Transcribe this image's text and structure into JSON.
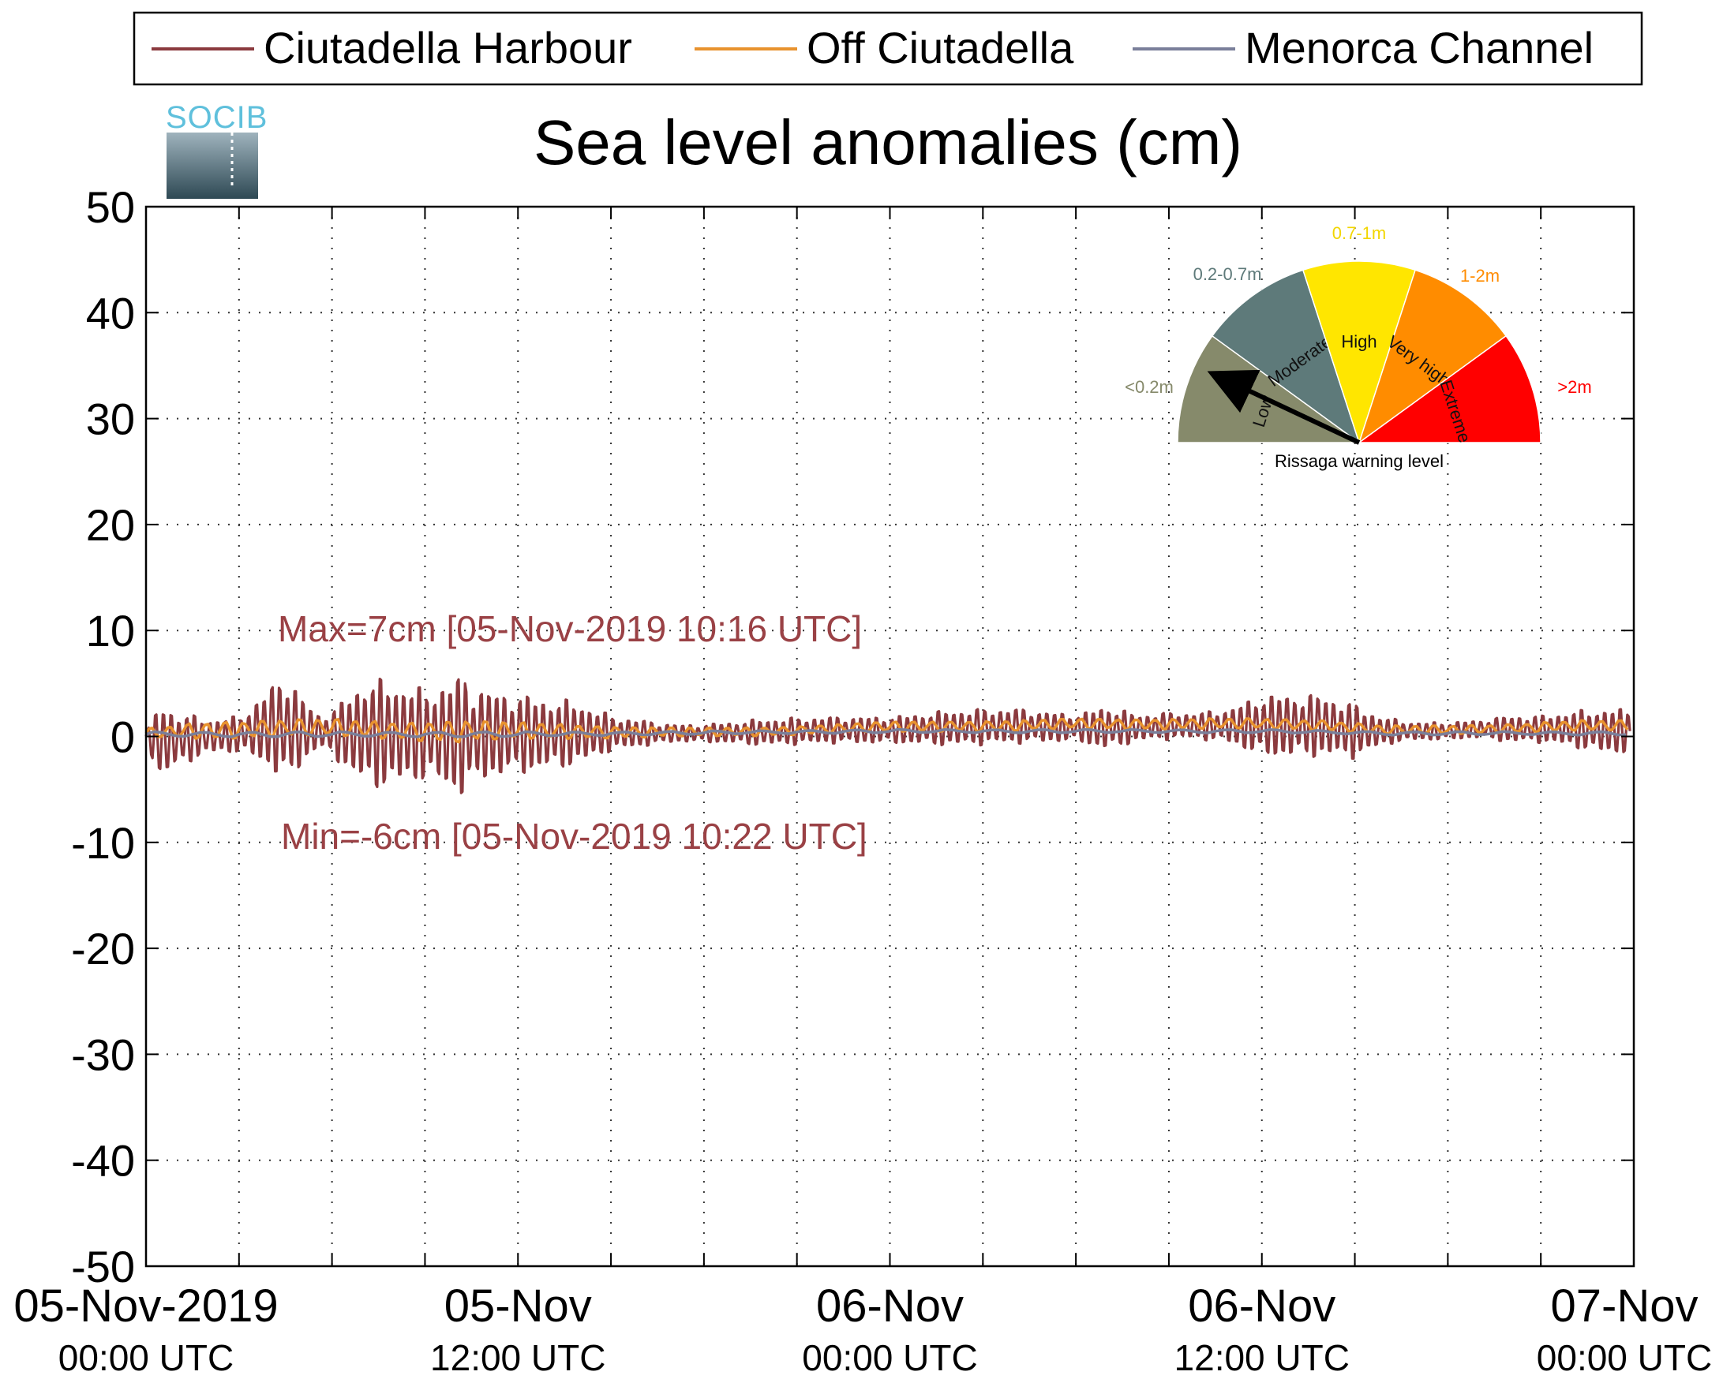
{
  "chart_data": {
    "type": "line",
    "title": "Sea level anomalies (cm)",
    "logo_text": "SOCIB",
    "ylabel": "",
    "xlabel": "",
    "ylim": [
      -50,
      50
    ],
    "yticks": [
      50,
      40,
      30,
      20,
      10,
      0,
      -10,
      -20,
      -30,
      -40,
      -50
    ],
    "yticklabels": [
      "50",
      "40",
      "30",
      "20",
      "10",
      "0",
      "-10",
      "-20",
      "-30",
      "-40",
      "-50"
    ],
    "xlim": [
      "05-Nov-2019 00:00 UTC",
      "07-Nov-2019 00:00 UTC"
    ],
    "xticks_hours": [
      0,
      12,
      24,
      36,
      48
    ],
    "minor_tick_interval_hours": 3,
    "xticklabels": [
      {
        "date": "05-Nov-2019",
        "time": "00:00 UTC"
      },
      {
        "date": "05-Nov",
        "time": "12:00 UTC"
      },
      {
        "date": "06-Nov",
        "time": "00:00 UTC"
      },
      {
        "date": "06-Nov",
        "time": "12:00 UTC"
      },
      {
        "date": "07-Nov",
        "time": "00:00 UTC"
      }
    ],
    "grid": true,
    "legend_position": "top",
    "legend": [
      "Ciutadella Harbour",
      "Off Ciutadella",
      "Menorca Channel"
    ],
    "series": [
      {
        "name": "Ciutadella Harbour",
        "color": "#8b3a3e",
        "hours": [
          0,
          0.5,
          1,
          2,
          3,
          4,
          4.5,
          5,
          5.5,
          6,
          7,
          8,
          9,
          10,
          10.27,
          10.37,
          11,
          12,
          13,
          14,
          15,
          16,
          17,
          18,
          20,
          22,
          24,
          26,
          28,
          30,
          31,
          32,
          33,
          34,
          35,
          36,
          37,
          38,
          39,
          40,
          41,
          42,
          43,
          44,
          45,
          46,
          47,
          47.9
        ],
        "envelope_cm": [
          0.5,
          4.5,
          3,
          2,
          2,
          4.5,
          6.5,
          4,
          2,
          2.5,
          6,
          6,
          5,
          6.5,
          7,
          6,
          5,
          4.5,
          4,
          3.5,
          2,
          1.5,
          1,
          1,
          1.5,
          1.5,
          1.5,
          2,
          2,
          1.5,
          2.5,
          1.5,
          1.5,
          1.5,
          2,
          3.5,
          3.5,
          3.5,
          3,
          1.5,
          1,
          1,
          1,
          1.5,
          1.5,
          2,
          2.5,
          2.5
        ],
        "baseline_cm": [
          0,
          -0.5,
          -0.3,
          0,
          0.2,
          0.8,
          0.8,
          0.5,
          0.5,
          0.3,
          0.3,
          0.2,
          0.2,
          0,
          0.3,
          0,
          0.2,
          0.2,
          0.2,
          0.3,
          0.3,
          0.3,
          0.3,
          0.3,
          0.4,
          0.6,
          0.6,
          0.8,
          1,
          0.8,
          0.8,
          0.8,
          1,
          1,
          1,
          1,
          1,
          1,
          0.5,
          0.5,
          0.5,
          0.5,
          0.7,
          0.7,
          0.7,
          0.7,
          0.5,
          0.5
        ],
        "max": {
          "value_cm": 7,
          "time": "05-Nov-2019 10:16 UTC"
        },
        "min": {
          "value_cm": -6,
          "time": "05-Nov-2019 10:22 UTC"
        }
      },
      {
        "name": "Off Ciutadella",
        "color": "#e8922e",
        "hours": [
          0,
          2,
          4,
          6,
          8,
          10,
          12,
          14,
          16,
          18,
          20,
          22,
          24,
          26,
          28,
          30,
          32,
          34,
          36,
          38,
          40,
          42,
          44,
          46,
          48
        ],
        "envelope_cm": [
          0.5,
          1,
          1,
          1,
          1,
          1.3,
          1,
          0.8,
          0.6,
          0.5,
          0.5,
          0.5,
          0.6,
          0.6,
          0.6,
          0.6,
          0.6,
          0.6,
          0.6,
          0.6,
          0.5,
          0.5,
          0.5,
          0.6,
          0.6
        ],
        "baseline_cm": [
          0.3,
          0.6,
          0.8,
          0.8,
          0.6,
          0.5,
          0.5,
          0.5,
          0.4,
          0.4,
          0.5,
          0.7,
          0.9,
          1,
          1,
          1.2,
          1.2,
          1.2,
          1.2,
          1.1,
          0.6,
          0.6,
          0.8,
          1,
          1
        ]
      },
      {
        "name": "Menorca Channel",
        "color": "#7a7f9a",
        "hours": [
          0,
          4,
          8,
          12,
          16,
          20,
          24,
          28,
          32,
          36,
          40,
          44,
          48
        ],
        "envelope_cm": [
          0.3,
          0.3,
          0.3,
          0.3,
          0.2,
          0.2,
          0.2,
          0.2,
          0.2,
          0.2,
          0.2,
          0.2,
          0.2
        ],
        "baseline_cm": [
          0.2,
          0.2,
          0.2,
          0.2,
          0.3,
          0.4,
          0.5,
          0.5,
          0.5,
          0.5,
          0.3,
          0.3,
          0.3
        ]
      }
    ],
    "annotations": {
      "max_label": "Max=7cm [05-Nov-2019 10:16 UTC]",
      "min_label": "Min=-6cm [05-Nov-2019 10:22 UTC]"
    },
    "warning_gauge": {
      "caption": "Rissaga warning level",
      "current_level": "Low",
      "segments": [
        {
          "label": "Low",
          "range": "<0.2m",
          "color": "#868a6b",
          "range_color": "#868a6b"
        },
        {
          "label": "Moderate",
          "range": "0.2-0.7m",
          "color": "#5e7a7a",
          "range_color": "#5e7a7a"
        },
        {
          "label": "High",
          "range": "0.7-1m",
          "color": "#ffe600",
          "range_color": "#f2d600"
        },
        {
          "label": "Very high",
          "range": "1-2m",
          "color": "#ff8c00",
          "range_color": "#ff8c00"
        },
        {
          "label": "Extreme",
          "range": ">2m",
          "color": "#ff0000",
          "range_color": "#ff0000"
        }
      ]
    }
  }
}
